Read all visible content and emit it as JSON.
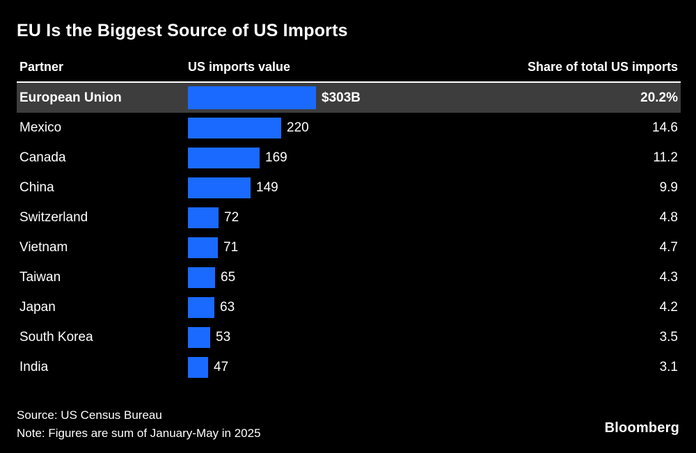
{
  "title": "EU Is the Biggest Source of US Imports",
  "columns": {
    "partner": "Partner",
    "value": "US imports value",
    "share": "Share of total US imports"
  },
  "footer": {
    "source": "Source: US Census Bureau",
    "note": "Note: Figures are sum of January-May in 2025",
    "brand": "Bloomberg"
  },
  "colors": {
    "background": "#000000",
    "bar": "#1a6aff",
    "highlight_row": "#3d3d3d",
    "text": "#ffffff"
  },
  "chart_data": {
    "type": "bar",
    "orientation": "horizontal",
    "title": "EU Is the Biggest Source of US Imports",
    "categories": [
      "European Union",
      "Mexico",
      "Canada",
      "China",
      "Switzerland",
      "Vietnam",
      "Taiwan",
      "Japan",
      "South Korea",
      "India"
    ],
    "values": [
      303,
      220,
      169,
      149,
      72,
      71,
      65,
      63,
      53,
      47
    ],
    "value_labels": [
      "$303B",
      "220",
      "169",
      "149",
      "72",
      "71",
      "65",
      "63",
      "53",
      "47"
    ],
    "shares": [
      20.2,
      14.6,
      11.2,
      9.9,
      4.8,
      4.7,
      4.3,
      4.2,
      3.5,
      3.1
    ],
    "share_labels": [
      "20.2%",
      "14.6",
      "11.2",
      "9.9",
      "4.8",
      "4.7",
      "4.3",
      "4.2",
      "3.5",
      "3.1"
    ],
    "value_unit": "billion USD",
    "highlight_index": 0,
    "xlim": [
      0,
      320
    ],
    "grid": false,
    "legend": false
  }
}
